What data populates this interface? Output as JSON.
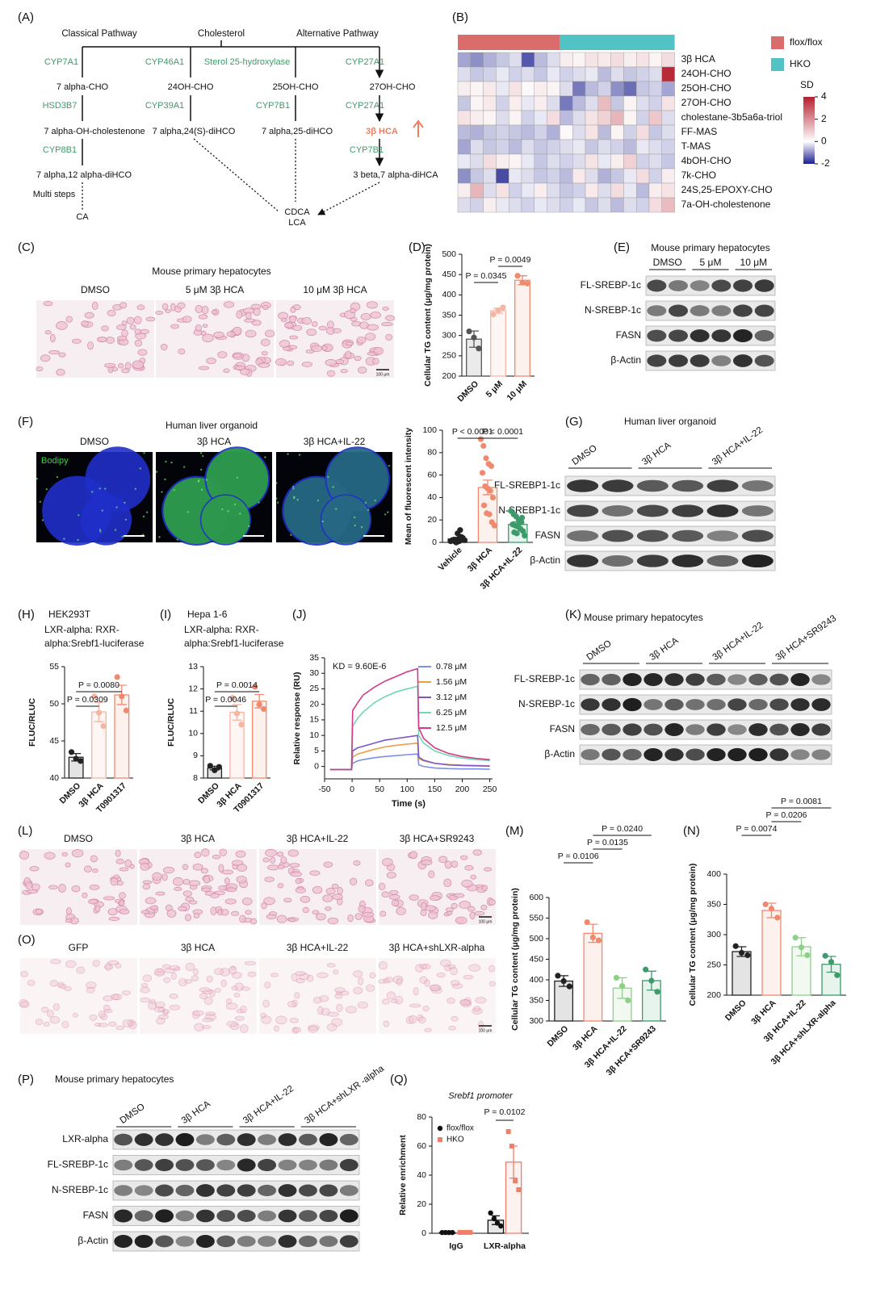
{
  "panel_labels": [
    "(A)",
    "(B)",
    "(C)",
    "(D)",
    "(E)",
    "(F)",
    "(G)",
    "(H)",
    "(I)",
    "(J)",
    "(K)",
    "(L)",
    "(M)",
    "(N)",
    "(O)",
    "(P)",
    "(Q)"
  ],
  "pathway": {
    "headers": [
      "Classical Pathway",
      "Cholesterol",
      "Alternative Pathway"
    ],
    "enzymes": [
      "CYP7A1",
      "CYP46A1",
      "Sterol 25-hydroxylase",
      "CYP27A1",
      "HSD3B7",
      "CYP39A1",
      "CYP7B1",
      "CYP27A1",
      "CYP8B1",
      "CYP7B1"
    ],
    "metabolites": [
      "7 alpha-CHO",
      "24OH-CHO",
      "25OH-CHO",
      "27OH-CHO",
      "7 alpha-OH-cholestenone",
      "7 alpha,24(S)-diHCO",
      "7 alpha,25-diHCO",
      "3β HCA",
      "7 alpha,12 alpha-diHCO",
      "3 beta,7 alpha-diHCA"
    ],
    "note": "Multi steps",
    "products": [
      "CA",
      "CDCA",
      "LCA"
    ]
  },
  "micrographs": [
    {
      "title": "Mouse primary hepatocytes",
      "labels": [
        "DMSO",
        "5 μM 3β HCA",
        "10 μM 3β HCA"
      ],
      "scale": "100 μm"
    },
    {
      "title": "Human liver organoid",
      "labels": [
        "DMSO",
        "3β HCA",
        "3β HCA+IL-22"
      ],
      "stain": "Bodipy"
    },
    {
      "labels": [
        "DMSO",
        "3β HCA",
        "3β HCA+IL-22",
        "3β HCA+SR9243"
      ],
      "scale": "100 μm"
    },
    {
      "labels": [
        "GFP",
        "3β HCA",
        "3β HCA+IL-22",
        "3β HCA+shLXR-alpha"
      ],
      "scale": "100 μm"
    }
  ],
  "blots": [
    {
      "title": "Mouse primary hepatocytes",
      "groups": [
        "DMSO",
        "5 μM",
        "10 μM"
      ],
      "rows": [
        "FL-SREBP-1c",
        "N-SREBP-1c",
        "FASN",
        "β-Actin"
      ]
    },
    {
      "title": "Human liver organoid",
      "groups": [
        "DMSO",
        "3β HCA",
        "3β HCA+IL-22"
      ],
      "rows": [
        "FL-SREBP1-1c",
        "N-SREBP1-1c",
        "FASN",
        "β-Actin"
      ]
    },
    {
      "title": "Mouse primary hepatocytes",
      "groups": [
        "DMSO",
        "3β HCA",
        "3β HCA+IL-22",
        "3β HCA+SR9243"
      ],
      "rows": [
        "FL-SREBP-1c",
        "N-SREBP-1c",
        "FASN",
        "β-Actin"
      ]
    },
    {
      "title": "Mouse primary hepatocytes",
      "groups": [
        "DMSO",
        "3β HCA",
        "3β HCA+IL-22",
        "3β HCA+shLXR -alpha"
      ],
      "rows": [
        "LXR-alpha",
        "FL-SREBP-1c",
        "N-SREBP-1c",
        "FASN",
        "β-Actin"
      ]
    }
  ],
  "chart_data": [
    {
      "type": "heatmap",
      "groups": [
        {
          "name": "flox/flox",
          "color": "#da6d6c",
          "count": 8
        },
        {
          "name": "HKO",
          "color": "#52c3c5",
          "count": 9
        }
      ],
      "rows": [
        "3β HCA",
        "24OH-CHO",
        "25OH-CHO",
        "27OH-CHO",
        "cholestane-3b5a6a-triol",
        "FF-MAS",
        "T-MAS",
        "4bOH-CHO",
        "7k-CHO",
        "24S,25-EPOXY-CHO",
        "7a-OH-cholestenone"
      ],
      "values": [
        [
          -0.8,
          -1,
          -0.7,
          -0.5,
          -0.3,
          -1.5,
          -0.6,
          -0.3,
          0.3,
          0.2,
          0.5,
          0.4,
          0.6,
          0.3,
          0.5,
          0.2,
          0.6
        ],
        [
          -0.3,
          -0.5,
          -0.4,
          -0.2,
          -0.4,
          -0.3,
          -0.5,
          -0.2,
          -0.4,
          -0.3,
          -0.2,
          -0.6,
          -0.3,
          -0.5,
          -0.4,
          -0.3,
          3.8
        ],
        [
          0.3,
          0.2,
          0.4,
          -0.2,
          0.5,
          0.1,
          0.3,
          0.2,
          -0.3,
          -1.2,
          -0.6,
          -0.4,
          -1,
          -1.3,
          -0.5,
          -0.4,
          -0.8
        ],
        [
          -0.5,
          0.2,
          0.4,
          -0.4,
          0.3,
          -0.2,
          0.3,
          -0.3,
          -1.2,
          -0.6,
          -0.3,
          1.2,
          -0.5,
          0.2,
          -0.3,
          -0.4,
          0.5
        ],
        [
          0.5,
          0.3,
          0.2,
          -0.3,
          0.2,
          -0.4,
          -0.2,
          0.6,
          -0.6,
          -0.3,
          0.5,
          0.8,
          1.3,
          0.2,
          -0.4,
          1,
          -0.3
        ],
        [
          -0.6,
          -0.7,
          -0.5,
          -0.4,
          -0.5,
          -0.6,
          -0.4,
          -0.7,
          0.1,
          -0.3,
          0.5,
          -0.6,
          0.2,
          -0.4,
          0.6,
          -0.5,
          -0.3
        ],
        [
          -0.8,
          -0.3,
          -0.5,
          -0.4,
          -0.6,
          -0.3,
          -0.5,
          -0.4,
          -0.3,
          -0.2,
          -0.5,
          -0.3,
          -0.4,
          -0.6,
          -0.2,
          -0.3,
          -0.4
        ],
        [
          -0.2,
          -0.3,
          0.6,
          0.3,
          0.2,
          -0.2,
          -0.5,
          -0.3,
          -0.4,
          -0.3,
          0.5,
          -0.2,
          0.3,
          0.8,
          -0.4,
          -0.3,
          -0.5
        ],
        [
          -1,
          -0.5,
          -0.3,
          -1.6,
          -0.2,
          -0.3,
          -0.5,
          -0.4,
          -0.6,
          0.4,
          -0.3,
          -0.7,
          -0.5,
          -0.2,
          0.6,
          -0.4,
          0.3
        ],
        [
          0.3,
          1.3,
          -0.3,
          0.5,
          -0.4,
          -0.2,
          0.3,
          -0.3,
          -0.5,
          -0.4,
          0.4,
          -0.3,
          0.6,
          -0.2,
          -0.6,
          0.3,
          0.5
        ],
        [
          -0.3,
          -0.4,
          0.3,
          -0.2,
          -0.3,
          -0.4,
          -0.2,
          -0.3,
          -0.4,
          -0.2,
          -0.5,
          -0.3,
          -0.6,
          -0.3,
          -0.4,
          0.6,
          1.2
        ]
      ],
      "colorbar": {
        "title": "SD",
        "vlim": [
          -2,
          4
        ],
        "ticks": [
          4,
          2,
          0,
          -2
        ],
        "colors": [
          "#1b1f8f",
          "#ffffff",
          "#b51f2e"
        ]
      }
    },
    {
      "type": "bar",
      "ylabel": "Cellular TG content (μg/mg protein)",
      "categories": [
        "DMSO",
        "5 μM",
        "10 μM"
      ],
      "values": [
        291,
        361,
        436
      ],
      "errors": [
        20,
        6,
        11
      ],
      "points": [
        [
          310,
          295,
          268
        ],
        [
          352,
          362,
          369
        ],
        [
          447,
          430,
          428
        ]
      ],
      "colors": [
        "#555555",
        "#f5b5a3",
        "#ef8a6f"
      ],
      "ylim": [
        200,
        500
      ],
      "yticks": [
        200,
        250,
        300,
        350,
        400,
        450,
        500
      ],
      "annotations": [
        "P = 0.0345",
        "P = 0.0049"
      ]
    },
    {
      "type": "bar",
      "ylabel": "Mean of fluorescent intensity",
      "categories": [
        "Vehicle",
        "3β HCA",
        "3β HCA+IL-22"
      ],
      "values": [
        3,
        49,
        16
      ],
      "errors": [
        1.5,
        6.5,
        2.3
      ],
      "points": [
        [
          1,
          2,
          0,
          3,
          5,
          2,
          1,
          8,
          11,
          4,
          2,
          0,
          1,
          3,
          2
        ],
        [
          92,
          86,
          75,
          70,
          68,
          62,
          50,
          48,
          46,
          40,
          33,
          26,
          25,
          18,
          15
        ],
        [
          28,
          25,
          23,
          20,
          18,
          16,
          15,
          14,
          12,
          10,
          9,
          8,
          17,
          22,
          6
        ]
      ],
      "colors": [
        "#222222",
        "#ef8a6f",
        "#3d9a6a"
      ],
      "ylim": [
        0,
        100
      ],
      "yticks": [
        0,
        20,
        40,
        60,
        80,
        100
      ],
      "annotations": [
        "P < 0.0001",
        "P < 0.0001"
      ]
    },
    {
      "type": "bar",
      "title": "HEK293T",
      "subtitle": [
        "LXR-alpha: RXR-",
        "alpha:Srebf1-luciferase"
      ],
      "ylabel": "FLUC/RLUC",
      "categories": [
        "DMSO",
        "3β HCA",
        "T0901317"
      ],
      "values": [
        42.8,
        48.9,
        51.2
      ],
      "errors": [
        0.5,
        1.3,
        1.3
      ],
      "points": [
        [
          43.5,
          42.6,
          42.3
        ],
        [
          51,
          48.8,
          47
        ],
        [
          53.6,
          51,
          49.1
        ]
      ],
      "colors": [
        "#222222",
        "#f5b5a3",
        "#ef8a6f"
      ],
      "ylim": [
        40,
        55
      ],
      "yticks": [
        40,
        45,
        50,
        55
      ],
      "annotations": [
        "P = 0.0309",
        "P = 0.0080"
      ]
    },
    {
      "type": "bar",
      "title": "Hepa 1-6",
      "subtitle": [
        "LXR-alpha: RXR-",
        "alpha:Srebf1-luciferase"
      ],
      "ylabel": "FLUC/RLUC",
      "categories": [
        "DMSO",
        "3β HCA",
        "T0901317"
      ],
      "values": [
        8.45,
        10.95,
        11.45
      ],
      "errors": [
        0.08,
        0.35,
        0.3
      ],
      "points": [
        [
          8.55,
          8.35,
          8.5
        ],
        [
          11.6,
          10.9,
          10.4
        ],
        [
          12.1,
          11.3,
          11.1
        ]
      ],
      "colors": [
        "#222222",
        "#f5b5a3",
        "#ef8a6f"
      ],
      "ylim": [
        8,
        13
      ],
      "yticks": [
        8,
        9,
        10,
        11,
        12,
        13
      ],
      "annotations": [
        "P = 0.0046",
        "P = 0.0014"
      ]
    },
    {
      "type": "line",
      "annotation": "KD = 9.60E-6",
      "xlabel": "Time (s)",
      "ylabel": "Relative response (RU)",
      "x": [
        -40,
        -20,
        -1,
        1,
        10,
        20,
        40,
        60,
        80,
        100,
        119,
        121,
        130,
        150,
        175,
        200,
        225,
        250
      ],
      "series": [
        {
          "name": "0.78 μM",
          "color": "#7d8fe3",
          "values": [
            -1,
            -1,
            -1,
            1,
            1.8,
            2.2,
            2.8,
            3.2,
            3.5,
            3.8,
            4,
            0.5,
            0,
            -0.5,
            -0.7,
            -0.8,
            -0.8,
            -0.9
          ]
        },
        {
          "name": "1.56 μM",
          "color": "#e9a04a",
          "values": [
            -1,
            -1,
            -1,
            3,
            4,
            4.5,
            5.5,
            6.3,
            6.8,
            7.2,
            7.5,
            2.5,
            1.8,
            1,
            0.6,
            0.4,
            0.3,
            0.2
          ]
        },
        {
          "name": "3.12 μM",
          "color": "#7d55c7",
          "values": [
            -1,
            -1,
            -1,
            5,
            6,
            6.5,
            7.5,
            8.5,
            9,
            9.5,
            10,
            3,
            2,
            1,
            0.5,
            0.3,
            0.2,
            0.1
          ]
        },
        {
          "name": "6.25 μM",
          "color": "#6fd8b0",
          "values": [
            -1,
            -1,
            -1,
            13,
            15.5,
            17.5,
            20.5,
            22.5,
            24,
            25,
            25.8,
            10,
            7.5,
            5,
            3.5,
            2.7,
            2.2,
            1.9
          ]
        },
        {
          "name": "12.5 μM",
          "color": "#d23a8a",
          "values": [
            -1,
            -1,
            -1,
            18,
            20.5,
            23,
            25.5,
            27.5,
            29,
            30.5,
            31.5,
            12.5,
            9,
            6,
            4.2,
            3.2,
            2.6,
            2.2
          ]
        }
      ],
      "xlim": [
        -50,
        255
      ],
      "xticks": [
        -50,
        0,
        50,
        100,
        150,
        200,
        250
      ],
      "ylim": [
        -4,
        35
      ],
      "yticks": [
        0,
        5,
        10,
        15,
        20,
        25,
        30,
        35
      ]
    },
    {
      "type": "bar",
      "ylabel": "Cellular TG content (μg/mg protein)",
      "categories": [
        "DMSO",
        "3β HCA",
        "3β HCA+IL-22",
        "3β HCA+SR9243"
      ],
      "values": [
        397,
        513,
        380,
        398
      ],
      "errors": [
        13,
        22,
        25,
        23
      ],
      "points": [
        [
          410,
          397,
          384
        ],
        [
          540,
          503,
          496
        ],
        [
          405,
          385,
          350
        ],
        [
          425,
          398,
          371
        ]
      ],
      "colors": [
        "#222222",
        "#ef8a6f",
        "#8ecf8a",
        "#3d9a6a"
      ],
      "ylim": [
        300,
        600
      ],
      "yticks": [
        300,
        350,
        400,
        450,
        500,
        550,
        600
      ],
      "annotations": [
        "P = 0.0106",
        "P = 0.0135",
        "P = 0.0240"
      ]
    },
    {
      "type": "bar",
      "ylabel": "Cellular TG content (μg/mg protein)",
      "categories": [
        "DMSO",
        "3β HCA",
        "3β HCA+IL-22",
        "3β HCA+shLXR-alpha"
      ],
      "values": [
        272,
        340,
        280,
        251
      ],
      "errors": [
        8,
        12,
        15,
        13
      ],
      "points": [
        [
          281,
          270,
          266
        ],
        [
          350,
          343,
          328
        ],
        [
          295,
          279,
          266
        ],
        [
          265,
          255,
          233
        ]
      ],
      "colors": [
        "#222222",
        "#ef8a6f",
        "#8ecf8a",
        "#3d9a6a"
      ],
      "ylim": [
        200,
        400
      ],
      "yticks": [
        200,
        250,
        300,
        350,
        400
      ],
      "annotations": [
        "P = 0.0074",
        "P = 0.0206",
        "P = 0.0081"
      ]
    },
    {
      "type": "grouped",
      "title": "Srebf1 promoter",
      "ylabel": "Relative enrichment",
      "categories": [
        "IgG",
        "LXR-alpha"
      ],
      "series": [
        {
          "name": "flox/flox",
          "color": "#111111",
          "values": [
            0.5,
            9
          ],
          "errors": [
            0.1,
            3
          ],
          "points": [
            [
              0.5,
              0.5,
              0.5,
              0.5
            ],
            [
              14,
              10,
              7,
              5
            ]
          ]
        },
        {
          "name": "HKO",
          "color": "#f07f6a",
          "values": [
            0.6,
            49
          ],
          "errors": [
            0.1,
            11
          ],
          "points": [
            [
              0.6,
              0.6,
              0.6,
              0.6
            ],
            [
              70,
              60,
              36,
              30
            ]
          ]
        }
      ],
      "ylim": [
        0,
        80
      ],
      "yticks": [
        0,
        20,
        40,
        60,
        80
      ],
      "annotations": [
        "P = 0.0102"
      ]
    }
  ]
}
